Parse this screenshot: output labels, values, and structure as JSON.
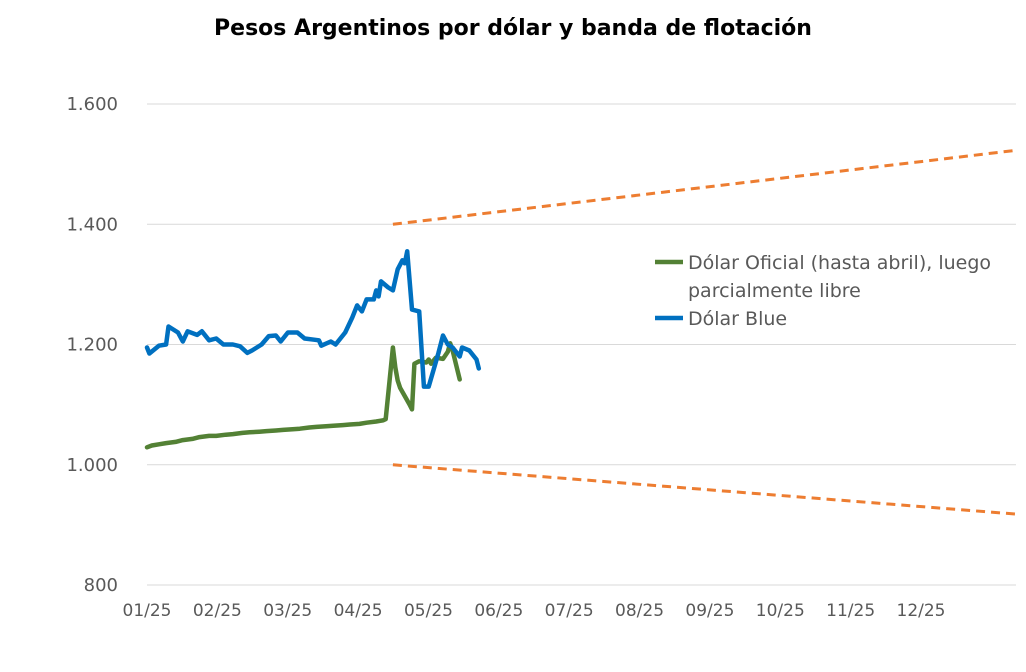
{
  "chart_data": {
    "type": "line",
    "title": "Pesos Argentinos por dólar y banda de flotación",
    "xlabel": "",
    "ylabel": "",
    "x_ticks": [
      "01/25",
      "02/25",
      "03/25",
      "04/25",
      "05/25",
      "06/25",
      "07/25",
      "08/25",
      "09/25",
      "10/25",
      "11/25",
      "12/25"
    ],
    "x_range": [
      "2025-01-01",
      "2025-12-31"
    ],
    "ylim": [
      800,
      1600
    ],
    "y_ticks": [
      800,
      1000,
      1200,
      1400,
      1600
    ],
    "y_tick_labels": [
      "800",
      "1.000",
      "1.200",
      "1.400",
      "1.600"
    ],
    "grid": true,
    "legend_position": "right",
    "legend": [
      {
        "label_line1": "Dólar Oficial (hasta abril), luego",
        "label_line2": "parcialmente libre",
        "series": "oficial"
      },
      {
        "label_line1": "Dólar Blue",
        "label_line2": "",
        "series": "blue"
      }
    ],
    "series": [
      {
        "id": "oficial",
        "name": "Dólar Oficial (hasta abril), luego parcialmente libre",
        "color": "#538135",
        "style": "solid",
        "points": [
          [
            "2025-01-01",
            1029
          ],
          [
            "2025-01-03",
            1032
          ],
          [
            "2025-01-06",
            1034
          ],
          [
            "2025-01-09",
            1036
          ],
          [
            "2025-01-13",
            1038
          ],
          [
            "2025-01-16",
            1041
          ],
          [
            "2025-01-20",
            1043
          ],
          [
            "2025-01-23",
            1046
          ],
          [
            "2025-01-27",
            1048
          ],
          [
            "2025-01-30",
            1048
          ],
          [
            "2025-02-03",
            1050
          ],
          [
            "2025-02-06",
            1051
          ],
          [
            "2025-02-10",
            1053
          ],
          [
            "2025-02-13",
            1054
          ],
          [
            "2025-02-17",
            1055
          ],
          [
            "2025-02-20",
            1056
          ],
          [
            "2025-02-24",
            1057
          ],
          [
            "2025-02-27",
            1058
          ],
          [
            "2025-03-03",
            1059
          ],
          [
            "2025-03-06",
            1060
          ],
          [
            "2025-03-10",
            1062
          ],
          [
            "2025-03-13",
            1063
          ],
          [
            "2025-03-17",
            1064
          ],
          [
            "2025-03-20",
            1065
          ],
          [
            "2025-03-24",
            1066
          ],
          [
            "2025-03-27",
            1067
          ],
          [
            "2025-03-31",
            1068
          ],
          [
            "2025-04-03",
            1070
          ],
          [
            "2025-04-07",
            1072
          ],
          [
            "2025-04-10",
            1074
          ],
          [
            "2025-04-11",
            1076
          ],
          [
            "2025-04-14",
            1195
          ],
          [
            "2025-04-15",
            1162
          ],
          [
            "2025-04-16",
            1140
          ],
          [
            "2025-04-17",
            1128
          ],
          [
            "2025-04-21",
            1100
          ],
          [
            "2025-04-22",
            1092
          ],
          [
            "2025-04-23",
            1168
          ],
          [
            "2025-04-25",
            1172
          ],
          [
            "2025-04-28",
            1170
          ],
          [
            "2025-04-29",
            1175
          ],
          [
            "2025-04-30",
            1168
          ],
          [
            "2025-05-02",
            1178
          ],
          [
            "2025-05-05",
            1176
          ],
          [
            "2025-05-07",
            1188
          ],
          [
            "2025-05-08",
            1202
          ],
          [
            "2025-05-09",
            1190
          ],
          [
            "2025-05-12",
            1142
          ]
        ]
      },
      {
        "id": "blue",
        "name": "Dólar Blue",
        "color": "#0070c0",
        "style": "solid",
        "points": [
          [
            "2025-01-01",
            1195
          ],
          [
            "2025-01-02",
            1185
          ],
          [
            "2025-01-06",
            1198
          ],
          [
            "2025-01-09",
            1200
          ],
          [
            "2025-01-10",
            1230
          ],
          [
            "2025-01-14",
            1220
          ],
          [
            "2025-01-16",
            1205
          ],
          [
            "2025-01-18",
            1222
          ],
          [
            "2025-01-22",
            1216
          ],
          [
            "2025-01-24",
            1222
          ],
          [
            "2025-01-27",
            1207
          ],
          [
            "2025-01-30",
            1210
          ],
          [
            "2025-02-02",
            1200
          ],
          [
            "2025-02-06",
            1200
          ],
          [
            "2025-02-09",
            1197
          ],
          [
            "2025-02-12",
            1186
          ],
          [
            "2025-02-14",
            1190
          ],
          [
            "2025-02-18",
            1200
          ],
          [
            "2025-02-21",
            1214
          ],
          [
            "2025-02-24",
            1215
          ],
          [
            "2025-02-26",
            1205
          ],
          [
            "2025-03-01",
            1220
          ],
          [
            "2025-03-05",
            1220
          ],
          [
            "2025-03-08",
            1210
          ],
          [
            "2025-03-12",
            1208
          ],
          [
            "2025-03-14",
            1207
          ],
          [
            "2025-03-15",
            1198
          ],
          [
            "2025-03-19",
            1205
          ],
          [
            "2025-03-21",
            1200
          ],
          [
            "2025-03-25",
            1220
          ],
          [
            "2025-03-28",
            1245
          ],
          [
            "2025-03-30",
            1265
          ],
          [
            "2025-04-01",
            1255
          ],
          [
            "2025-04-03",
            1275
          ],
          [
            "2025-04-06",
            1275
          ],
          [
            "2025-04-07",
            1290
          ],
          [
            "2025-04-08",
            1280
          ],
          [
            "2025-04-09",
            1305
          ],
          [
            "2025-04-12",
            1295
          ],
          [
            "2025-04-14",
            1290
          ],
          [
            "2025-04-16",
            1325
          ],
          [
            "2025-04-18",
            1340
          ],
          [
            "2025-04-19",
            1335
          ],
          [
            "2025-04-20",
            1355
          ],
          [
            "2025-04-22",
            1258
          ],
          [
            "2025-04-25",
            1255
          ],
          [
            "2025-04-27",
            1130
          ],
          [
            "2025-04-29",
            1130
          ],
          [
            "2025-05-03",
            1185
          ],
          [
            "2025-05-05",
            1215
          ],
          [
            "2025-05-07",
            1200
          ],
          [
            "2025-05-09",
            1195
          ],
          [
            "2025-05-12",
            1180
          ],
          [
            "2025-05-13",
            1195
          ],
          [
            "2025-05-16",
            1190
          ],
          [
            "2025-05-19",
            1175
          ],
          [
            "2025-05-20",
            1160
          ]
        ]
      },
      {
        "id": "banda-superior",
        "name": "",
        "color": "#ed7d31",
        "style": "dashed",
        "points": [
          [
            "2025-04-14",
            1400
          ],
          [
            "2025-12-31",
            1523
          ]
        ]
      },
      {
        "id": "banda-inferior",
        "name": "",
        "color": "#ed7d31",
        "style": "dashed",
        "points": [
          [
            "2025-04-14",
            1000
          ],
          [
            "2025-12-31",
            918
          ]
        ]
      }
    ]
  }
}
